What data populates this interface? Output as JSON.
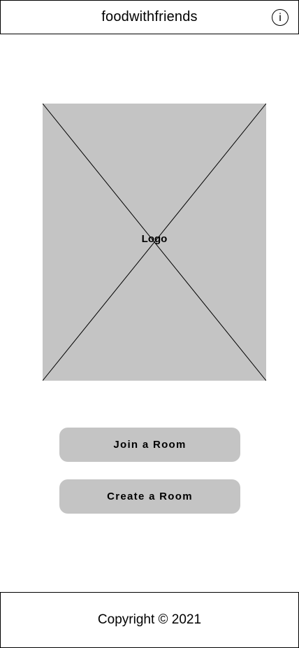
{
  "header": {
    "title": "foodwithfriends",
    "info_icon": "info-icon",
    "info_glyph": "i"
  },
  "logo": {
    "label": "Logo",
    "fill_color": "#c4c4c4"
  },
  "actions": {
    "join_label": "Join a Room",
    "create_label": "Create a Room",
    "button_color": "#c4c4c4"
  },
  "footer": {
    "copyright": "Copyright © 2021"
  }
}
